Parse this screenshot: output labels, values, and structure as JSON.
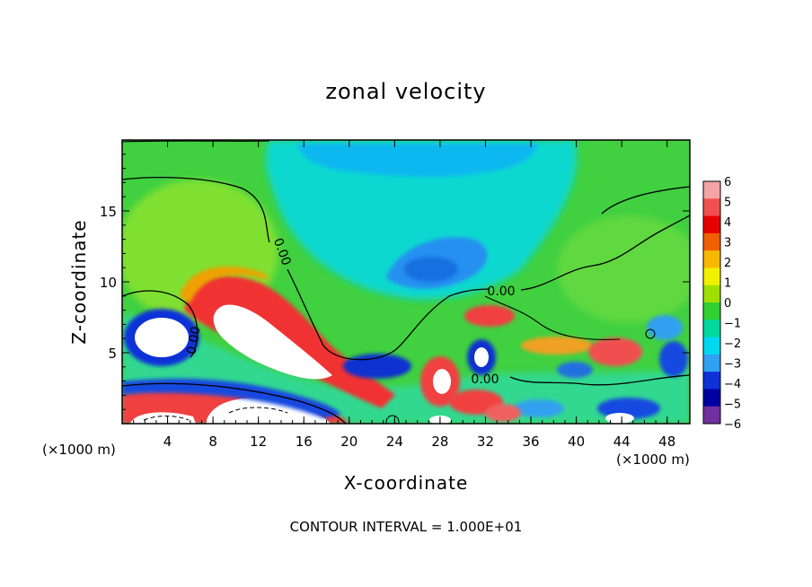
{
  "chart_data": {
    "type": "heatmap",
    "title": "zonal velocity",
    "xlabel": "X-coordinate",
    "ylabel": "Z-coordinate",
    "x_unit": "(×1000 m)",
    "y_unit": "(×1000 m)",
    "footer": "CONTOUR INTERVAL = 1.000E+01",
    "xlim": [
      0,
      50
    ],
    "ylim": [
      0,
      20
    ],
    "x_ticks": [
      4,
      8,
      12,
      16,
      20,
      24,
      28,
      32,
      36,
      40,
      44,
      48
    ],
    "y_ticks": [
      5,
      10,
      15
    ],
    "colorbar": {
      "levels": [
        6,
        5,
        4,
        3,
        2,
        1,
        0,
        -1,
        -2,
        -3,
        -4,
        -5,
        -6
      ],
      "colors": [
        "#f4a4a4",
        "#f05050",
        "#e80000",
        "#f06000",
        "#f8b800",
        "#f0f000",
        "#a0e000",
        "#30d030",
        "#00d8a0",
        "#00d8f0",
        "#30a0f0",
        "#1030d8",
        "#0000a0",
        "#7030a0"
      ]
    },
    "contour_labels": [
      "0.00",
      "0.00",
      "0.00",
      "0.00"
    ],
    "regions": [
      {
        "kind": "green-background",
        "value": 0.5
      },
      {
        "kind": "blue-blob",
        "x": 24,
        "z": 11.5,
        "value": -3
      },
      {
        "kind": "cyan-region",
        "x": 25,
        "z": 15,
        "value": -2
      },
      {
        "kind": "red-band",
        "x": 12,
        "z": 7,
        "value": 4
      },
      {
        "kind": "white-core",
        "x": 10,
        "z": 7,
        "value": 6
      },
      {
        "kind": "blue-blob",
        "x": 4,
        "z": 6.5,
        "value": -5
      },
      {
        "kind": "red-patch",
        "x": 33,
        "z": 7.5,
        "value": 4
      },
      {
        "kind": "red-patch",
        "x": 44,
        "z": 5,
        "value": 4
      },
      {
        "kind": "blue-patch",
        "x": 22,
        "z": 4,
        "value": -5
      },
      {
        "kind": "blue-patch",
        "x": 32,
        "z": 5,
        "value": -5
      }
    ]
  }
}
